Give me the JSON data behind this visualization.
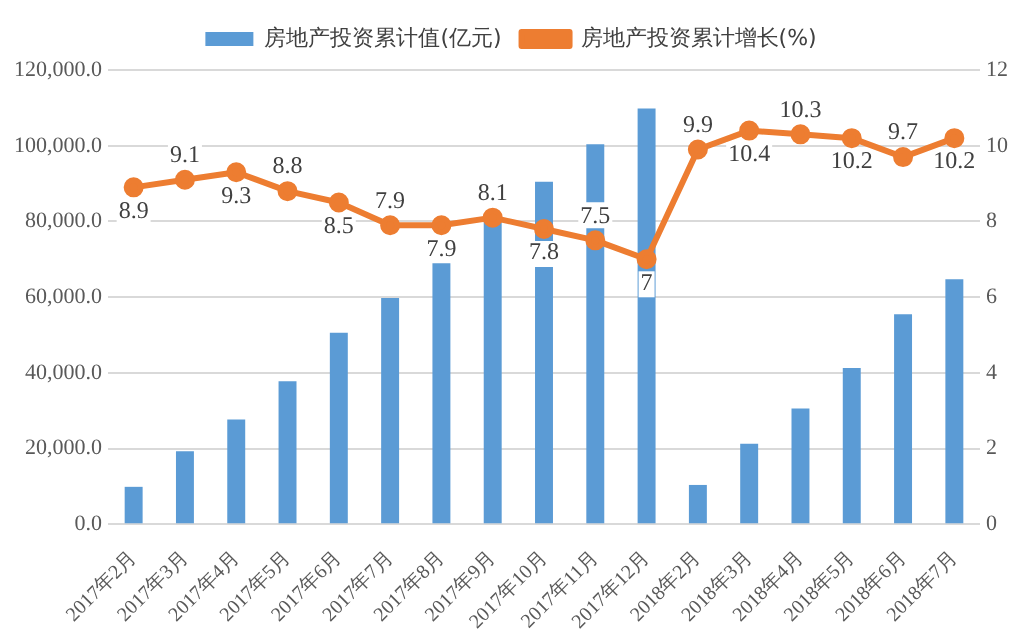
{
  "chart_data": {
    "type": "bar",
    "categories": [
      "2017年2月",
      "2017年3月",
      "2017年4月",
      "2017年5月",
      "2017年6月",
      "2017年7月",
      "2017年8月",
      "2017年9月",
      "2017年10月",
      "2017年11月",
      "2017年12月",
      "2018年2月",
      "2018年3月",
      "2018年4月",
      "2018年5月",
      "2018年6月",
      "2018年7月"
    ],
    "series": [
      {
        "name": "房地产投资累计值(亿元)",
        "color": "#5b9bd5",
        "values": [
          9900,
          19300,
          27700,
          37800,
          50600,
          59800,
          69500,
          80600,
          90500,
          100400,
          109800,
          10400,
          21300,
          30600,
          41300,
          55500,
          64700
        ]
      },
      {
        "name": "房地产投资累计增长(%)",
        "type": "line",
        "axis": "y2",
        "color": "#ed7d31",
        "marker": "circle",
        "values": [
          8.9,
          9.1,
          9.3,
          8.8,
          8.5,
          7.9,
          7.9,
          8.1,
          7.8,
          7.5,
          7,
          9.9,
          10.4,
          10.3,
          10.2,
          9.7,
          10.2
        ],
        "value_labels": [
          "8.9",
          "9.1",
          "9.3",
          "8.8",
          "8.5",
          "7.9",
          "7.9",
          "8.1",
          "7.8",
          "7.5",
          "7",
          "9.9",
          "10.4",
          "10.3",
          "10.2",
          "9.7",
          "10.2"
        ]
      }
    ],
    "ylim": [
      0,
      120000
    ],
    "yticks": [
      {
        "value": 0,
        "label": "0.0"
      },
      {
        "value": 20000,
        "label": "20,000.0"
      },
      {
        "value": 40000,
        "label": "40,000.0"
      },
      {
        "value": 60000,
        "label": "60,000.0"
      },
      {
        "value": 80000,
        "label": "80,000.0"
      },
      {
        "value": 100000,
        "label": "100,000.0"
      },
      {
        "value": 120000,
        "label": "120,000.0"
      }
    ],
    "y2lim": [
      0,
      12
    ],
    "y2ticks": [
      0,
      2,
      4,
      6,
      8,
      10,
      12
    ],
    "grid": "y",
    "legend": "top"
  }
}
